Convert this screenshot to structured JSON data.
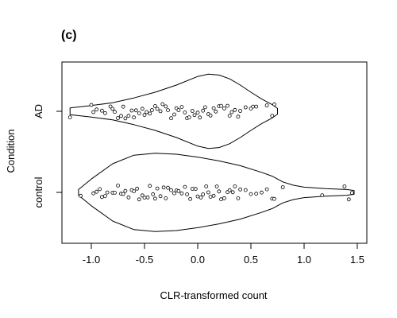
{
  "chart_data": {
    "type": "violin",
    "panel_label": "(c)",
    "xlabel": "CLR-transformed count",
    "ylabel": "Condition",
    "xlim": [
      -1.3,
      1.5
    ],
    "x_ticks": [
      -1.0,
      -0.5,
      0.0,
      0.5,
      1.0,
      1.5
    ],
    "x_tick_labels": [
      "-1.0",
      "-0.5",
      "0.0",
      "0.5",
      "1.0",
      "1.5"
    ],
    "categories": [
      "control",
      "AD"
    ],
    "horizontal": true,
    "box": true,
    "grid": false,
    "series": [
      {
        "category": "AD",
        "outline_x": [
          -1.2,
          -1.0,
          -0.8,
          -0.6,
          -0.4,
          -0.2,
          0.0,
          0.1,
          0.2,
          0.3,
          0.4,
          0.5,
          0.6,
          0.7,
          0.75
        ],
        "outline_half_width": [
          0.07,
          0.12,
          0.18,
          0.28,
          0.4,
          0.55,
          0.73,
          0.78,
          0.76,
          0.68,
          0.55,
          0.4,
          0.26,
          0.14,
          0.06
        ],
        "points": [
          -1.2,
          -1.0,
          -0.98,
          -0.95,
          -0.9,
          -0.87,
          -0.82,
          -0.8,
          -0.78,
          -0.75,
          -0.72,
          -0.7,
          -0.68,
          -0.65,
          -0.62,
          -0.6,
          -0.58,
          -0.55,
          -0.52,
          -0.5,
          -0.48,
          -0.45,
          -0.43,
          -0.4,
          -0.38,
          -0.35,
          -0.33,
          -0.3,
          -0.28,
          -0.25,
          -0.22,
          -0.2,
          -0.18,
          -0.15,
          -0.12,
          -0.1,
          -0.08,
          -0.05,
          -0.03,
          0.0,
          0.02,
          0.05,
          0.07,
          0.1,
          0.12,
          0.15,
          0.17,
          0.2,
          0.22,
          0.25,
          0.28,
          0.3,
          0.32,
          0.35,
          0.38,
          0.4,
          0.45,
          0.5,
          0.52,
          0.55,
          0.65,
          0.7,
          0.72
        ]
      },
      {
        "category": "control",
        "outline_x": [
          -1.12,
          -1.0,
          -0.8,
          -0.6,
          -0.4,
          -0.2,
          0.0,
          0.2,
          0.4,
          0.6,
          0.7,
          0.8,
          0.9,
          1.0,
          1.2,
          1.4,
          1.47
        ],
        "outline_half_width": [
          0.06,
          0.28,
          0.6,
          0.78,
          0.82,
          0.8,
          0.74,
          0.66,
          0.56,
          0.42,
          0.34,
          0.22,
          0.15,
          0.11,
          0.08,
          0.06,
          0.04
        ],
        "points": [
          -1.1,
          -0.98,
          -0.95,
          -0.92,
          -0.9,
          -0.87,
          -0.85,
          -0.8,
          -0.78,
          -0.75,
          -0.72,
          -0.7,
          -0.68,
          -0.65,
          -0.62,
          -0.6,
          -0.57,
          -0.55,
          -0.52,
          -0.5,
          -0.47,
          -0.45,
          -0.42,
          -0.4,
          -0.38,
          -0.35,
          -0.32,
          -0.3,
          -0.28,
          -0.25,
          -0.22,
          -0.2,
          -0.18,
          -0.15,
          -0.12,
          -0.1,
          -0.07,
          -0.05,
          -0.02,
          0.0,
          0.03,
          0.05,
          0.08,
          0.1,
          0.12,
          0.15,
          0.18,
          0.2,
          0.22,
          0.25,
          0.28,
          0.3,
          0.33,
          0.35,
          0.38,
          0.4,
          0.45,
          0.5,
          0.55,
          0.6,
          0.65,
          0.7,
          0.72,
          0.8,
          1.17,
          1.38,
          1.42,
          1.45
        ]
      }
    ]
  }
}
